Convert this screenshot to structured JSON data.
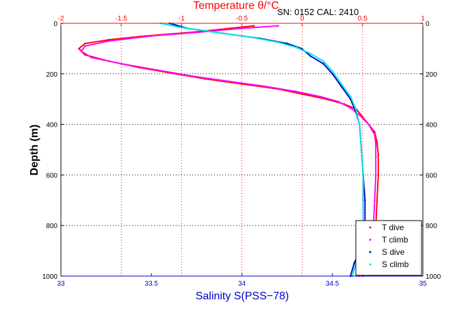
{
  "chart_data": {
    "type": "scatter",
    "annotation": "SN: 0152  CAL: 2410",
    "top_axis": {
      "label": "Temperature θ/°C",
      "range": [
        -2,
        1
      ],
      "ticks": [
        "-2",
        "-1.5",
        "-1",
        "-0.5",
        "0",
        "0.5",
        "1"
      ],
      "color": "#ff0000"
    },
    "bottom_axis": {
      "label": "Salinity S(PSS−78)",
      "range": [
        33,
        35
      ],
      "ticks": [
        "33",
        "33.5",
        "34",
        "34.5",
        "35"
      ],
      "color": "#0000cc"
    },
    "y_axis": {
      "label": "Depth (m)",
      "range": [
        0,
        1000
      ],
      "reversed": true,
      "ticks": [
        "0",
        "200",
        "400",
        "600",
        "800",
        "1000"
      ]
    },
    "grid": true,
    "legend_position": "bottom-right",
    "series": [
      {
        "name": "T dive",
        "axis": "temperature",
        "color": "#ff0000",
        "points": [
          [
            -0.4,
            10
          ],
          [
            -0.6,
            20
          ],
          [
            -0.9,
            35
          ],
          [
            -1.3,
            50
          ],
          [
            -1.6,
            65
          ],
          [
            -1.8,
            80
          ],
          [
            -1.85,
            100
          ],
          [
            -1.8,
            125
          ],
          [
            -1.6,
            150
          ],
          [
            -1.35,
            175
          ],
          [
            -1.05,
            200
          ],
          [
            -0.8,
            220
          ],
          [
            -0.5,
            240
          ],
          [
            -0.2,
            260
          ],
          [
            0.0,
            280
          ],
          [
            0.2,
            300
          ],
          [
            0.35,
            320
          ],
          [
            0.45,
            340
          ],
          [
            0.5,
            370
          ],
          [
            0.55,
            400
          ],
          [
            0.6,
            430
          ],
          [
            0.62,
            470
          ],
          [
            0.63,
            520
          ],
          [
            0.63,
            600
          ],
          [
            0.62,
            700
          ],
          [
            0.61,
            800
          ],
          [
            0.58,
            850
          ],
          [
            0.55,
            900
          ],
          [
            0.52,
            950
          ],
          [
            0.5,
            1000
          ]
        ]
      },
      {
        "name": "T climb",
        "axis": "temperature",
        "color": "#ff00ff",
        "points": [
          [
            -0.2,
            10
          ],
          [
            -0.5,
            20
          ],
          [
            -0.85,
            35
          ],
          [
            -1.25,
            50
          ],
          [
            -1.6,
            70
          ],
          [
            -1.8,
            90
          ],
          [
            -1.83,
            110
          ],
          [
            -1.75,
            135
          ],
          [
            -1.5,
            160
          ],
          [
            -1.2,
            185
          ],
          [
            -0.9,
            210
          ],
          [
            -0.6,
            230
          ],
          [
            -0.3,
            250
          ],
          [
            -0.05,
            270
          ],
          [
            0.15,
            290
          ],
          [
            0.3,
            310
          ],
          [
            0.4,
            335
          ],
          [
            0.48,
            365
          ],
          [
            0.55,
            400
          ],
          [
            0.6,
            440
          ],
          [
            0.61,
            480
          ],
          [
            0.61,
            530
          ],
          [
            0.61,
            600
          ],
          [
            0.6,
            700
          ],
          [
            0.59,
            800
          ],
          [
            0.57,
            850
          ],
          [
            0.54,
            900
          ],
          [
            0.5,
            950
          ],
          [
            0.47,
            1000
          ]
        ]
      },
      {
        "name": "S dive",
        "axis": "salinity",
        "color": "#0000cc",
        "points": [
          [
            33.6,
            0
          ],
          [
            33.7,
            20
          ],
          [
            33.9,
            40
          ],
          [
            34.1,
            60
          ],
          [
            34.25,
            80
          ],
          [
            34.33,
            100
          ],
          [
            34.38,
            130
          ],
          [
            34.45,
            160
          ],
          [
            34.5,
            200
          ],
          [
            34.55,
            250
          ],
          [
            34.6,
            300
          ],
          [
            34.63,
            350
          ],
          [
            34.65,
            400
          ],
          [
            34.66,
            500
          ],
          [
            34.67,
            600
          ],
          [
            34.68,
            700
          ],
          [
            34.68,
            800
          ],
          [
            34.67,
            850
          ],
          [
            34.65,
            900
          ],
          [
            34.62,
            950
          ],
          [
            34.6,
            1000
          ]
        ]
      },
      {
        "name": "S climb",
        "axis": "salinity",
        "color": "#00e5e5",
        "points": [
          [
            33.55,
            0
          ],
          [
            33.65,
            15
          ],
          [
            33.85,
            35
          ],
          [
            34.05,
            55
          ],
          [
            34.2,
            75
          ],
          [
            34.3,
            95
          ],
          [
            34.38,
            120
          ],
          [
            34.45,
            150
          ],
          [
            34.5,
            190
          ],
          [
            34.55,
            240
          ],
          [
            34.6,
            290
          ],
          [
            34.63,
            340
          ],
          [
            34.65,
            400
          ],
          [
            34.66,
            500
          ],
          [
            34.67,
            600
          ],
          [
            34.67,
            700
          ],
          [
            34.67,
            800
          ],
          [
            34.66,
            850
          ],
          [
            34.65,
            900
          ],
          [
            34.63,
            950
          ],
          [
            34.61,
            1000
          ]
        ]
      }
    ]
  }
}
